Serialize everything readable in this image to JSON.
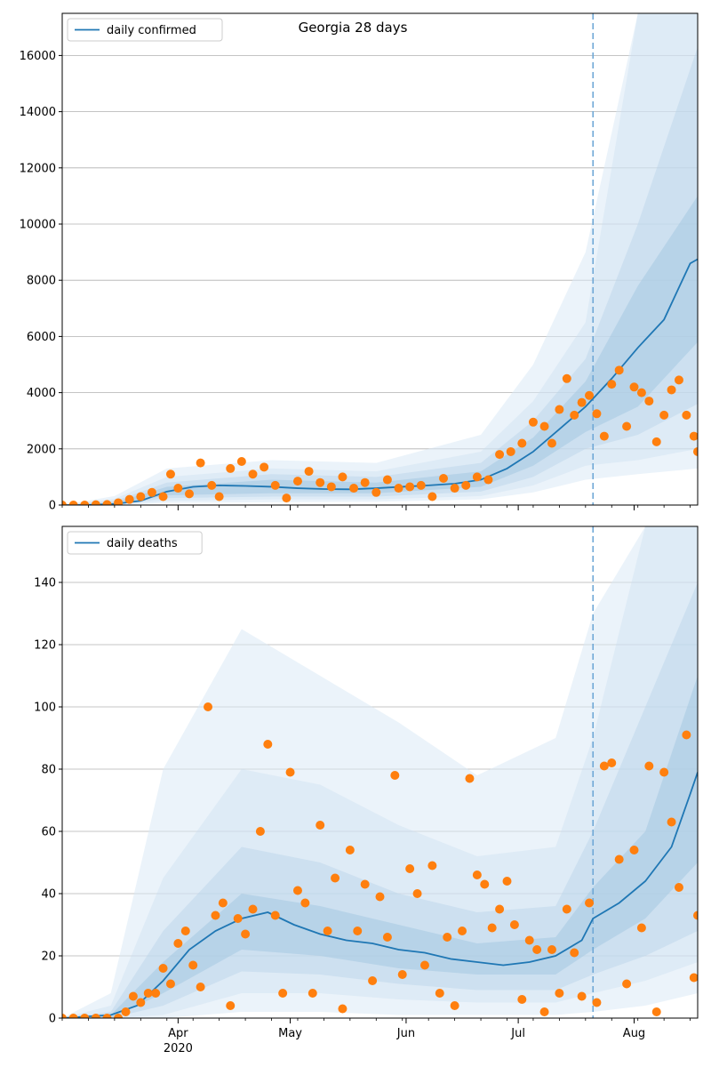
{
  "chart_data": [
    {
      "type": "line",
      "title": "Georgia 28 days",
      "xlabel": "",
      "ylabel": "",
      "x_range": [
        "2020-03-01",
        "2020-08-18"
      ],
      "ylim": [
        0,
        17500
      ],
      "yticks": [
        0,
        2000,
        4000,
        6000,
        8000,
        10000,
        12000,
        14000,
        16000
      ],
      "ytick_labels": [
        "0",
        "2000",
        "4000",
        "6000",
        "8000",
        "10000",
        "12000",
        "14000",
        "16000"
      ],
      "grid": "horizontal",
      "legend": "top-left",
      "forecast_start": "2020-07-21",
      "series": [
        {
          "name": "daily confirmed",
          "color": "#1f77b4",
          "x": [
            "2020-03-01",
            "2020-03-08",
            "2020-03-15",
            "2020-03-22",
            "2020-03-29",
            "2020-04-05",
            "2020-04-12",
            "2020-04-19",
            "2020-04-26",
            "2020-05-03",
            "2020-05-10",
            "2020-05-17",
            "2020-05-24",
            "2020-05-31",
            "2020-06-07",
            "2020-06-14",
            "2020-06-21",
            "2020-06-28",
            "2020-07-05",
            "2020-07-12",
            "2020-07-19",
            "2020-07-26",
            "2020-08-02",
            "2020-08-09",
            "2020-08-16",
            "2020-08-18"
          ],
          "y": [
            0,
            5,
            40,
            150,
            480,
            650,
            700,
            680,
            650,
            600,
            570,
            560,
            600,
            650,
            700,
            760,
            900,
            1300,
            1900,
            2700,
            3500,
            4500,
            5600,
            6600,
            8600,
            8750
          ]
        }
      ],
      "bands": [
        {
          "x": [
            "2020-03-01",
            "2020-03-15",
            "2020-03-29",
            "2020-04-26",
            "2020-05-24",
            "2020-06-21",
            "2020-07-05",
            "2020-07-19",
            "2020-08-02",
            "2020-08-18"
          ],
          "low": [
            0,
            10,
            350,
            420,
            420,
            650,
            1400,
            2600,
            3500,
            5800
          ],
          "high": [
            0,
            80,
            650,
            900,
            800,
            1200,
            2400,
            4400,
            7800,
            11000
          ]
        },
        {
          "x": [
            "2020-03-01",
            "2020-03-15",
            "2020-03-29",
            "2020-04-26",
            "2020-05-24",
            "2020-06-21",
            "2020-07-05",
            "2020-07-19",
            "2020-08-02",
            "2020-08-18"
          ],
          "low": [
            0,
            5,
            250,
            300,
            300,
            480,
            1000,
            2000,
            2500,
            3600
          ],
          "high": [
            0,
            140,
            800,
            1100,
            1000,
            1500,
            3000,
            5200,
            10000,
            16300
          ]
        },
        {
          "x": [
            "2020-03-01",
            "2020-03-15",
            "2020-03-29",
            "2020-04-26",
            "2020-05-24",
            "2020-06-21",
            "2020-07-05",
            "2020-07-19",
            "2020-08-02",
            "2020-08-18"
          ],
          "low": [
            0,
            0,
            150,
            200,
            200,
            320,
            700,
            1400,
            1600,
            2000
          ],
          "high": [
            0,
            220,
            1000,
            1300,
            1200,
            1900,
            3700,
            6500,
            17500,
            17500
          ]
        },
        {
          "x": [
            "2020-03-01",
            "2020-03-15",
            "2020-03-29",
            "2020-04-26",
            "2020-05-24",
            "2020-06-21",
            "2020-07-05",
            "2020-07-19",
            "2020-08-02",
            "2020-08-18"
          ],
          "low": [
            0,
            0,
            80,
            100,
            120,
            200,
            450,
            900,
            1100,
            1300
          ],
          "high": [
            0,
            320,
            1300,
            1600,
            1500,
            2500,
            5000,
            9000,
            17500,
            17500
          ]
        }
      ],
      "points": {
        "color": "#ff7f0e",
        "x": [
          "2020-03-01",
          "2020-03-04",
          "2020-03-07",
          "2020-03-10",
          "2020-03-13",
          "2020-03-16",
          "2020-03-19",
          "2020-03-22",
          "2020-03-25",
          "2020-03-28",
          "2020-03-30",
          "2020-04-01",
          "2020-04-04",
          "2020-04-07",
          "2020-04-10",
          "2020-04-12",
          "2020-04-15",
          "2020-04-18",
          "2020-04-21",
          "2020-04-24",
          "2020-04-27",
          "2020-04-30",
          "2020-05-03",
          "2020-05-06",
          "2020-05-09",
          "2020-05-12",
          "2020-05-15",
          "2020-05-18",
          "2020-05-21",
          "2020-05-24",
          "2020-05-27",
          "2020-05-30",
          "2020-06-02",
          "2020-06-05",
          "2020-06-08",
          "2020-06-11",
          "2020-06-14",
          "2020-06-17",
          "2020-06-20",
          "2020-06-23",
          "2020-06-26",
          "2020-06-29",
          "2020-07-02",
          "2020-07-05",
          "2020-07-08",
          "2020-07-10",
          "2020-07-12",
          "2020-07-14",
          "2020-07-16",
          "2020-07-18",
          "2020-07-20",
          "2020-07-22",
          "2020-07-24",
          "2020-07-26",
          "2020-07-28",
          "2020-07-30",
          "2020-08-01",
          "2020-08-03",
          "2020-08-05",
          "2020-08-07",
          "2020-08-09",
          "2020-08-11",
          "2020-08-13",
          "2020-08-15",
          "2020-08-17",
          "2020-08-18"
        ],
        "y": [
          0,
          0,
          0,
          10,
          20,
          80,
          200,
          300,
          450,
          300,
          1100,
          600,
          400,
          1500,
          700,
          300,
          1300,
          1550,
          1100,
          1350,
          700,
          250,
          850,
          1200,
          800,
          650,
          1000,
          600,
          800,
          450,
          900,
          600,
          650,
          700,
          300,
          950,
          600,
          700,
          1000,
          900,
          1800,
          1900,
          2200,
          2950,
          2800,
          2200,
          3400,
          4500,
          3200,
          3650,
          3900,
          3250,
          2450,
          4300,
          4800,
          2800,
          4200,
          4000,
          3700,
          2250,
          3200,
          4100,
          4450,
          3200,
          2450,
          1900
        ]
      }
    },
    {
      "type": "line",
      "title": "",
      "xlabel": "",
      "ylabel": "",
      "x_range": [
        "2020-03-01",
        "2020-08-18"
      ],
      "ylim": [
        0,
        158
      ],
      "yticks": [
        0,
        20,
        40,
        60,
        80,
        100,
        120,
        140
      ],
      "ytick_labels": [
        "0",
        "20",
        "40",
        "60",
        "80",
        "100",
        "120",
        "140"
      ],
      "xticks": [
        "2020-04-01",
        "2020-05-01",
        "2020-06-01",
        "2020-07-01",
        "2020-08-01"
      ],
      "xtick_labels": [
        "Apr\n2020",
        "May",
        "Jun",
        "Jul",
        "Aug"
      ],
      "grid": "horizontal",
      "legend": "top-left",
      "forecast_start": "2020-07-21",
      "series": [
        {
          "name": "daily deaths",
          "color": "#1f77b4",
          "x": [
            "2020-03-01",
            "2020-03-14",
            "2020-03-21",
            "2020-03-28",
            "2020-04-04",
            "2020-04-11",
            "2020-04-18",
            "2020-04-25",
            "2020-05-02",
            "2020-05-09",
            "2020-05-16",
            "2020-05-23",
            "2020-05-30",
            "2020-06-06",
            "2020-06-13",
            "2020-06-20",
            "2020-06-27",
            "2020-07-04",
            "2020-07-11",
            "2020-07-18",
            "2020-07-21",
            "2020-07-28",
            "2020-08-04",
            "2020-08-11",
            "2020-08-16",
            "2020-08-18"
          ],
          "y": [
            0,
            1,
            4,
            12,
            22,
            28,
            32,
            34,
            30,
            27,
            25,
            24,
            22,
            21,
            19,
            18,
            17,
            18,
            20,
            25,
            32,
            37,
            44,
            55,
            72,
            79
          ]
        }
      ],
      "bands": [
        {
          "x": [
            "2020-03-01",
            "2020-03-14",
            "2020-03-28",
            "2020-04-18",
            "2020-05-09",
            "2020-05-30",
            "2020-06-20",
            "2020-07-11",
            "2020-07-21",
            "2020-08-04",
            "2020-08-18"
          ],
          "low": [
            0,
            0,
            8,
            22,
            20,
            16,
            14,
            14,
            22,
            32,
            50
          ],
          "high": [
            0,
            1,
            18,
            40,
            36,
            30,
            24,
            26,
            42,
            60,
            110
          ]
        },
        {
          "x": [
            "2020-03-01",
            "2020-03-14",
            "2020-03-28",
            "2020-04-18",
            "2020-05-09",
            "2020-05-30",
            "2020-06-20",
            "2020-07-11",
            "2020-07-21",
            "2020-08-04",
            "2020-08-18"
          ],
          "low": [
            0,
            0,
            4,
            15,
            14,
            11,
            9,
            9,
            14,
            20,
            28
          ],
          "high": [
            0,
            2,
            28,
            55,
            50,
            40,
            34,
            36,
            60,
            100,
            140
          ]
        },
        {
          "x": [
            "2020-03-01",
            "2020-03-14",
            "2020-03-28",
            "2020-04-18",
            "2020-05-09",
            "2020-05-30",
            "2020-06-20",
            "2020-07-11",
            "2020-07-21",
            "2020-08-04",
            "2020-08-18"
          ],
          "low": [
            0,
            0,
            1,
            8,
            8,
            6,
            5,
            5,
            8,
            12,
            18
          ],
          "high": [
            0,
            4,
            45,
            80,
            75,
            62,
            52,
            55,
            90,
            158,
            158
          ]
        },
        {
          "x": [
            "2020-03-01",
            "2020-03-14",
            "2020-03-28",
            "2020-04-18",
            "2020-05-09",
            "2020-05-30",
            "2020-06-20",
            "2020-07-11",
            "2020-07-21",
            "2020-08-04",
            "2020-08-18"
          ],
          "low": [
            0,
            0,
            0,
            2,
            2,
            1,
            1,
            1,
            2,
            4,
            8
          ],
          "high": [
            0,
            8,
            80,
            125,
            110,
            95,
            78,
            90,
            130,
            158,
            158
          ]
        }
      ],
      "points": {
        "color": "#ff7f0e",
        "x": [
          "2020-03-01",
          "2020-03-04",
          "2020-03-07",
          "2020-03-10",
          "2020-03-13",
          "2020-03-16",
          "2020-03-18",
          "2020-03-20",
          "2020-03-22",
          "2020-03-24",
          "2020-03-26",
          "2020-03-28",
          "2020-03-30",
          "2020-04-01",
          "2020-04-03",
          "2020-04-05",
          "2020-04-07",
          "2020-04-09",
          "2020-04-11",
          "2020-04-13",
          "2020-04-15",
          "2020-04-17",
          "2020-04-19",
          "2020-04-21",
          "2020-04-23",
          "2020-04-25",
          "2020-04-27",
          "2020-04-29",
          "2020-05-01",
          "2020-05-03",
          "2020-05-05",
          "2020-05-07",
          "2020-05-09",
          "2020-05-11",
          "2020-05-13",
          "2020-05-15",
          "2020-05-17",
          "2020-05-19",
          "2020-05-21",
          "2020-05-23",
          "2020-05-25",
          "2020-05-27",
          "2020-05-29",
          "2020-05-31",
          "2020-06-02",
          "2020-06-04",
          "2020-06-06",
          "2020-06-08",
          "2020-06-10",
          "2020-06-12",
          "2020-06-14",
          "2020-06-16",
          "2020-06-18",
          "2020-06-20",
          "2020-06-22",
          "2020-06-24",
          "2020-06-26",
          "2020-06-28",
          "2020-06-30",
          "2020-07-02",
          "2020-07-04",
          "2020-07-06",
          "2020-07-08",
          "2020-07-10",
          "2020-07-12",
          "2020-07-14",
          "2020-07-16",
          "2020-07-18",
          "2020-07-20",
          "2020-07-22",
          "2020-07-24",
          "2020-07-26",
          "2020-07-28",
          "2020-07-30",
          "2020-08-01",
          "2020-08-03",
          "2020-08-05",
          "2020-08-07",
          "2020-08-09",
          "2020-08-11",
          "2020-08-13",
          "2020-08-15",
          "2020-08-17",
          "2020-08-18"
        ],
        "y": [
          0,
          0,
          0,
          0,
          0,
          0,
          2,
          7,
          5,
          8,
          8,
          16,
          11,
          24,
          28,
          17,
          10,
          100,
          33,
          37,
          4,
          32,
          27,
          35,
          60,
          88,
          33,
          8,
          79,
          41,
          37,
          8,
          62,
          28,
          45,
          3,
          54,
          28,
          43,
          12,
          39,
          26,
          78,
          14,
          48,
          40,
          17,
          49,
          8,
          26,
          4,
          28,
          77,
          46,
          43,
          29,
          35,
          44,
          30,
          6,
          25,
          22,
          2,
          22,
          8,
          35,
          21,
          7,
          37,
          5,
          81,
          82,
          51,
          11,
          54,
          29,
          81,
          2,
          79,
          63,
          42,
          91,
          13,
          33
        ]
      }
    }
  ]
}
